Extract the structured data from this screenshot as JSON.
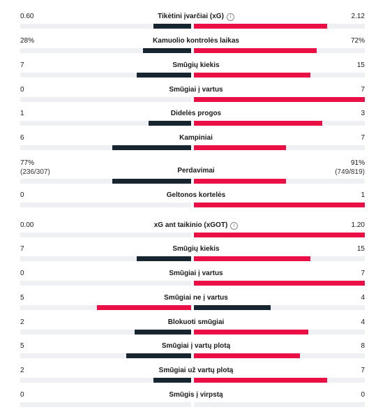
{
  "colors": {
    "lower": "#172530",
    "higher": "#ea0f44",
    "track": "#eef0f3"
  },
  "rows": [
    {
      "label": "Tikėtini įvarčiai (xG)",
      "info": true,
      "left": "0.60",
      "right": "2.12",
      "lf": 0.22,
      "rf": 0.78,
      "lc": "dark",
      "rc": "red"
    },
    {
      "label": "Kamuolio kontrolės laikas",
      "left": "28%",
      "right": "72%",
      "lf": 0.28,
      "rf": 0.72,
      "lc": "dark",
      "rc": "red"
    },
    {
      "label": "Smūgių kiekis",
      "left": "7",
      "right": "15",
      "lf": 0.32,
      "rf": 0.68,
      "lc": "dark",
      "rc": "red"
    },
    {
      "label": "Smūgiai į vartus",
      "left": "0",
      "right": "7",
      "lf": 0,
      "rf": 1.0,
      "lc": "dark",
      "rc": "red"
    },
    {
      "label": "Didelės progos",
      "left": "1",
      "right": "3",
      "lf": 0.25,
      "rf": 0.75,
      "lc": "dark",
      "rc": "red"
    },
    {
      "label": "Kampiniai",
      "left": "6",
      "right": "7",
      "lf": 0.46,
      "rf": 0.54,
      "lc": "dark",
      "rc": "red"
    },
    {
      "label": "Perdavimai",
      "left": "77%",
      "right": "91%",
      "leftSub": "(236/307)",
      "rightSub": "(749/819)",
      "lf": 0.46,
      "rf": 0.54,
      "lc": "dark",
      "rc": "red"
    },
    {
      "label": "Geltonos kortelės",
      "left": "0",
      "right": "1",
      "lf": 0,
      "rf": 1.0,
      "lc": "dark",
      "rc": "red"
    },
    {
      "label": "xG ant taikinio (xGOT)",
      "info": true,
      "left": "0.00",
      "right": "1.20",
      "lf": 0,
      "rf": 1.0,
      "lc": "dark",
      "rc": "red"
    },
    {
      "label": "Smūgių kiekis",
      "left": "7",
      "right": "15",
      "lf": 0.32,
      "rf": 0.68,
      "lc": "dark",
      "rc": "red"
    },
    {
      "label": "Smūgiai į vartus",
      "left": "0",
      "right": "7",
      "lf": 0,
      "rf": 1.0,
      "lc": "dark",
      "rc": "red"
    },
    {
      "label": "Smūgiai ne į vartus",
      "left": "5",
      "right": "4",
      "lf": 0.55,
      "rf": 0.45,
      "lc": "red",
      "rc": "dark"
    },
    {
      "label": "Blokuoti smūgiai",
      "left": "2",
      "right": "4",
      "lf": 0.33,
      "rf": 0.67,
      "lc": "dark",
      "rc": "red"
    },
    {
      "label": "Smūgiai į vartų plotą",
      "left": "5",
      "right": "8",
      "lf": 0.38,
      "rf": 0.62,
      "lc": "dark",
      "rc": "red"
    },
    {
      "label": "Smūgiai už vartų plotą",
      "left": "2",
      "right": "7",
      "lf": 0.22,
      "rf": 0.78,
      "lc": "dark",
      "rc": "red"
    },
    {
      "label": "Smūgis į virpstą",
      "left": "0",
      "right": "0",
      "lf": 0,
      "rf": 0,
      "lc": "dark",
      "rc": "red"
    }
  ]
}
